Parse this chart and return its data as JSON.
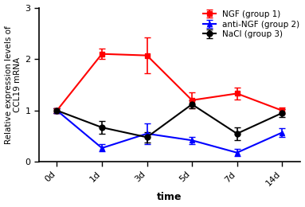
{
  "x_positions": [
    0,
    1,
    2,
    3,
    4,
    5
  ],
  "x_labels": [
    "0d",
    "1d",
    "3d",
    "5d",
    "7d",
    "14d"
  ],
  "ngf_y": [
    1.0,
    2.1,
    2.07,
    1.2,
    1.33,
    1.0
  ],
  "ngf_yerr": [
    0.05,
    0.1,
    0.35,
    0.15,
    0.12,
    0.06
  ],
  "anti_y": [
    1.0,
    0.27,
    0.55,
    0.42,
    0.18,
    0.57
  ],
  "anti_yerr": [
    0.05,
    0.07,
    0.2,
    0.07,
    0.07,
    0.08
  ],
  "nacl_y": [
    1.0,
    0.67,
    0.48,
    1.12,
    0.55,
    0.95
  ],
  "nacl_yerr": [
    0.05,
    0.12,
    0.1,
    0.08,
    0.12,
    0.08
  ],
  "ngf_color": "#ff0000",
  "anti_color": "#0000ff",
  "nacl_color": "#000000",
  "ylabel": "Relative expression levels of\nCCL19 mRNA",
  "xlabel": "time",
  "ylim": [
    0,
    3.0
  ],
  "yticks": [
    0,
    1,
    2,
    3
  ],
  "legend_labels": [
    "NGF (group 1)",
    "anti-NGF (group 2)",
    "NaCl (group 3)"
  ],
  "linewidth": 1.5,
  "markersize": 5,
  "capsize": 3,
  "elinewidth": 1.2
}
